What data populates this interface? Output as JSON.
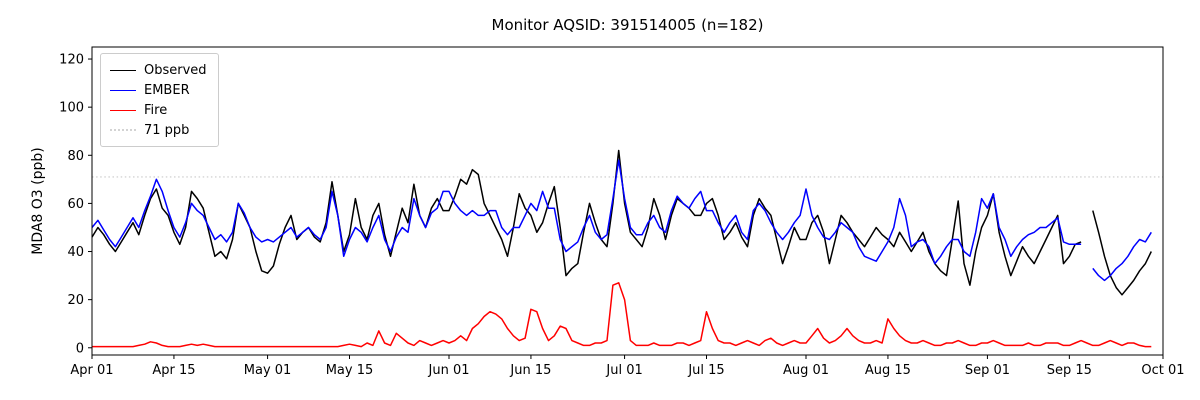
{
  "title": "Monitor AQSID: 391514005 (n=182)",
  "legend": {
    "items": [
      {
        "label": "Observed",
        "color": "#000000",
        "style": "solid"
      },
      {
        "label": "EMBER",
        "color": "#0000ff",
        "style": "solid"
      },
      {
        "label": "Fire",
        "color": "#ff0000",
        "style": "solid"
      },
      {
        "label": "71 ppb",
        "color": "#d3d3d3",
        "style": "dotted"
      }
    ]
  },
  "chart_data": {
    "type": "line",
    "title": "Monitor AQSID: 391514005 (n=182)",
    "xlabel": "",
    "ylabel": "MDA8 O3 (ppb)",
    "ylim": [
      -3,
      125
    ],
    "yticks": [
      0,
      20,
      40,
      60,
      80,
      100,
      120
    ],
    "x_domain_days": [
      0,
      183
    ],
    "xticks": [
      {
        "day": 0,
        "label": "Apr 01"
      },
      {
        "day": 14,
        "label": "Apr 15"
      },
      {
        "day": 30,
        "label": "May 01"
      },
      {
        "day": 44,
        "label": "May 15"
      },
      {
        "day": 61,
        "label": "Jun 01"
      },
      {
        "day": 75,
        "label": "Jun 15"
      },
      {
        "day": 91,
        "label": "Jul 01"
      },
      {
        "day": 105,
        "label": "Jul 15"
      },
      {
        "day": 122,
        "label": "Aug 01"
      },
      {
        "day": 136,
        "label": "Aug 15"
      },
      {
        "day": 153,
        "label": "Sep 01"
      },
      {
        "day": 167,
        "label": "Sep 15"
      },
      {
        "day": 183,
        "label": "Oct 01"
      }
    ],
    "threshold": {
      "value": 71,
      "label": "71 ppb",
      "color": "#d3d3d3"
    },
    "n": 182,
    "series": [
      {
        "name": "Observed",
        "color": "#000000",
        "values": [
          46,
          50,
          47,
          43,
          40,
          44,
          48,
          52,
          47,
          55,
          62,
          66,
          58,
          55,
          48,
          43,
          50,
          65,
          62,
          58,
          48,
          38,
          40,
          37,
          45,
          60,
          55,
          50,
          40,
          32,
          31,
          34,
          43,
          50,
          55,
          45,
          48,
          50,
          46,
          44,
          52,
          69,
          55,
          40,
          47,
          62,
          50,
          45,
          55,
          60,
          47,
          38,
          48,
          58,
          52,
          68,
          55,
          50,
          58,
          62,
          57,
          57,
          63,
          70,
          68,
          74,
          72,
          60,
          55,
          50,
          45,
          38,
          50,
          64,
          58,
          55,
          48,
          52,
          60,
          67,
          50,
          30,
          33,
          35,
          48,
          60,
          52,
          45,
          42,
          60,
          82,
          60,
          48,
          45,
          42,
          50,
          62,
          55,
          45,
          55,
          62,
          60,
          58,
          55,
          55,
          60,
          62,
          55,
          45,
          48,
          52,
          46,
          42,
          55,
          62,
          58,
          55,
          45,
          35,
          42,
          50,
          45,
          45,
          52,
          55,
          48,
          35,
          45,
          55,
          52,
          48,
          45,
          42,
          46,
          50,
          47,
          45,
          42,
          48,
          44,
          40,
          44,
          48,
          40,
          35,
          32,
          30,
          45,
          61,
          35,
          26,
          40,
          50,
          55,
          64,
          48,
          38,
          30,
          36,
          42,
          38,
          35,
          40,
          45,
          50,
          55,
          35,
          38,
          43,
          44,
          null,
          57,
          48,
          38,
          30,
          25,
          22,
          25,
          28,
          32,
          35,
          40
        ]
      },
      {
        "name": "EMBER",
        "color": "#0000ff",
        "values": [
          50,
          53,
          49,
          45,
          42,
          46,
          50,
          54,
          50,
          57,
          63,
          70,
          65,
          57,
          50,
          46,
          52,
          60,
          57,
          55,
          50,
          45,
          47,
          44,
          48,
          60,
          56,
          50,
          46,
          44,
          45,
          44,
          46,
          48,
          50,
          46,
          48,
          50,
          47,
          45,
          50,
          65,
          55,
          38,
          45,
          50,
          48,
          44,
          50,
          55,
          45,
          40,
          46,
          50,
          48,
          62,
          55,
          50,
          56,
          58,
          65,
          65,
          60,
          57,
          55,
          57,
          55,
          55,
          57,
          57,
          50,
          47,
          50,
          50,
          55,
          60,
          57,
          65,
          58,
          58,
          45,
          40,
          42,
          44,
          50,
          55,
          48,
          45,
          47,
          62,
          78,
          62,
          50,
          47,
          47,
          52,
          55,
          50,
          48,
          57,
          63,
          60,
          58,
          62,
          65,
          57,
          57,
          52,
          48,
          52,
          55,
          48,
          45,
          57,
          60,
          57,
          52,
          48,
          45,
          48,
          52,
          55,
          66,
          55,
          50,
          46,
          45,
          48,
          52,
          50,
          48,
          42,
          38,
          37,
          36,
          40,
          44,
          50,
          62,
          55,
          42,
          44,
          45,
          42,
          35,
          38,
          42,
          45,
          45,
          40,
          38,
          48,
          62,
          58,
          64,
          50,
          45,
          38,
          42,
          45,
          47,
          48,
          50,
          50,
          52,
          54,
          44,
          43,
          43,
          43,
          null,
          33,
          30,
          28,
          30,
          33,
          35,
          38,
          42,
          45,
          44,
          48
        ]
      },
      {
        "name": "Fire",
        "color": "#ff0000",
        "values": [
          0.5,
          0.5,
          0.5,
          0.5,
          0.5,
          0.5,
          0.5,
          0.5,
          1,
          1.5,
          2.5,
          2,
          1,
          0.5,
          0.5,
          0.5,
          1,
          1.5,
          1,
          1.5,
          1,
          0.5,
          0.5,
          0.5,
          0.5,
          0.5,
          0.5,
          0.5,
          0.5,
          0.5,
          0.5,
          0.5,
          0.5,
          0.5,
          0.5,
          0.5,
          0.5,
          0.5,
          0.5,
          0.5,
          0.5,
          0.5,
          0.5,
          1,
          1.5,
          1,
          0.5,
          2,
          1,
          7,
          2,
          1,
          6,
          4,
          2,
          1,
          3,
          2,
          1,
          2,
          3,
          2,
          3,
          5,
          3,
          8,
          10,
          13,
          15,
          14,
          12,
          8,
          5,
          3,
          4,
          16,
          15,
          8,
          3,
          5,
          9,
          8,
          3,
          2,
          1,
          1,
          2,
          2,
          3,
          26,
          27,
          20,
          3,
          1,
          1,
          1,
          2,
          1,
          1,
          1,
          2,
          2,
          1,
          2,
          3,
          15,
          8,
          3,
          2,
          2,
          1,
          2,
          3,
          2,
          1,
          3,
          4,
          2,
          1,
          2,
          3,
          2,
          2,
          5,
          8,
          4,
          2,
          3,
          5,
          8,
          5,
          3,
          2,
          2,
          3,
          2,
          12,
          8,
          5,
          3,
          2,
          2,
          3,
          2,
          1,
          1,
          2,
          2,
          3,
          2,
          1,
          1,
          2,
          2,
          3,
          2,
          1,
          1,
          1,
          1,
          2,
          1,
          1,
          2,
          2,
          2,
          1,
          1,
          2,
          3,
          2,
          1,
          1,
          2,
          3,
          2,
          1,
          2,
          2,
          1,
          0.5,
          0.5
        ]
      }
    ]
  }
}
